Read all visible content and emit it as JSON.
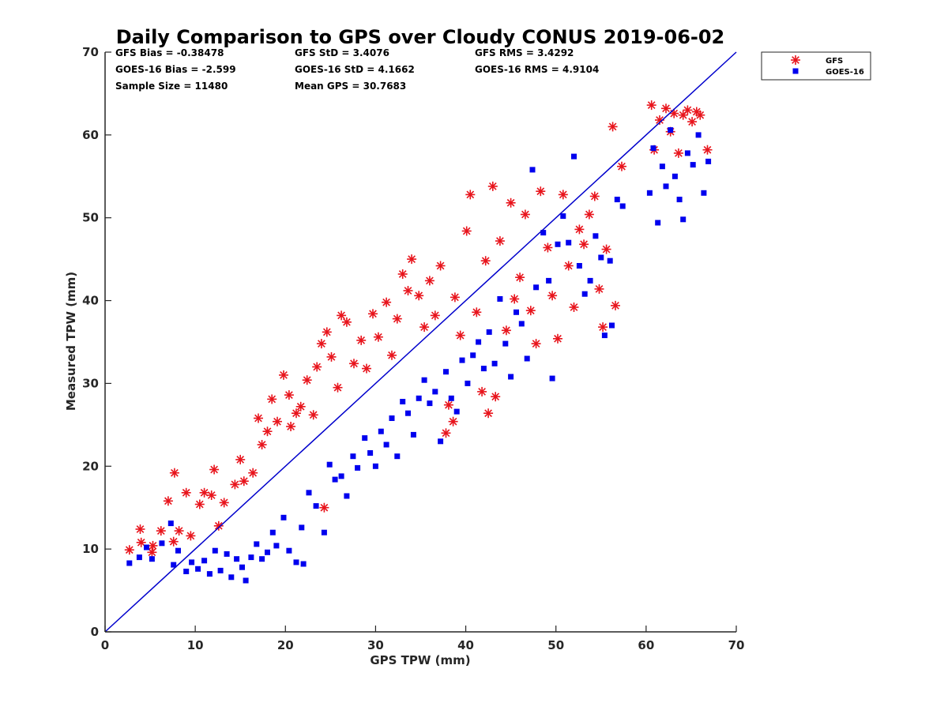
{
  "chart_data": {
    "type": "scatter",
    "title": "Daily Comparison to GPS over Cloudy CONUS 2019-06-02",
    "xlabel": "GPS TPW (mm)",
    "ylabel": "Measured TPW (mm)",
    "xlim": [
      0,
      70
    ],
    "ylim": [
      0,
      70
    ],
    "x_ticks": [
      "0",
      "10",
      "20",
      "30",
      "40",
      "50",
      "60",
      "70"
    ],
    "y_ticks": [
      "0",
      "10",
      "20",
      "30",
      "40",
      "50",
      "60",
      "70"
    ],
    "grid": false,
    "legend_position": "outside-top-right",
    "stats": [
      "GFS Bias = -0.38478",
      "GFS StD = 3.4076",
      "GFS RMS = 3.4292",
      "GOES-16 Bias = -2.599",
      "GOES-16 StD = 4.1662",
      "GOES-16 RMS = 4.9104",
      "Sample Size = 11480",
      "Mean GPS = 30.7683"
    ],
    "reference_line": {
      "x": [
        0,
        70
      ],
      "y": [
        0,
        70
      ],
      "color": "#0000cc"
    },
    "series": [
      {
        "name": "GFS",
        "marker": "asterisk",
        "color": "#e8141c",
        "points": [
          [
            2.7,
            9.9
          ],
          [
            3.9,
            12.4
          ],
          [
            4.0,
            10.8
          ],
          [
            5.2,
            9.6
          ],
          [
            5.3,
            10.4
          ],
          [
            6.2,
            12.2
          ],
          [
            7.0,
            15.8
          ],
          [
            7.6,
            10.9
          ],
          [
            7.7,
            19.2
          ],
          [
            8.2,
            12.2
          ],
          [
            9.0,
            16.8
          ],
          [
            9.5,
            11.6
          ],
          [
            10.5,
            15.4
          ],
          [
            11.0,
            16.8
          ],
          [
            11.8,
            16.5
          ],
          [
            12.1,
            19.6
          ],
          [
            12.6,
            12.8
          ],
          [
            13.2,
            15.6
          ],
          [
            14.4,
            17.8
          ],
          [
            15.0,
            20.8
          ],
          [
            15.4,
            18.2
          ],
          [
            16.4,
            19.2
          ],
          [
            17.0,
            25.8
          ],
          [
            17.4,
            22.6
          ],
          [
            18.0,
            24.2
          ],
          [
            18.5,
            28.1
          ],
          [
            19.1,
            25.4
          ],
          [
            19.8,
            31.0
          ],
          [
            20.4,
            28.6
          ],
          [
            20.6,
            24.8
          ],
          [
            21.2,
            26.4
          ],
          [
            21.7,
            27.2
          ],
          [
            22.4,
            30.4
          ],
          [
            23.1,
            26.2
          ],
          [
            23.5,
            32.0
          ],
          [
            24.0,
            34.8
          ],
          [
            24.3,
            15.0
          ],
          [
            24.6,
            36.2
          ],
          [
            25.1,
            33.2
          ],
          [
            25.8,
            29.5
          ],
          [
            26.2,
            38.2
          ],
          [
            26.8,
            37.4
          ],
          [
            27.6,
            32.4
          ],
          [
            28.4,
            35.2
          ],
          [
            29.0,
            31.8
          ],
          [
            29.7,
            38.4
          ],
          [
            30.3,
            35.6
          ],
          [
            31.2,
            39.8
          ],
          [
            31.8,
            33.4
          ],
          [
            32.4,
            37.8
          ],
          [
            33.0,
            43.2
          ],
          [
            33.6,
            41.2
          ],
          [
            34.0,
            45.0
          ],
          [
            34.8,
            40.6
          ],
          [
            35.4,
            36.8
          ],
          [
            36.0,
            42.4
          ],
          [
            36.6,
            38.2
          ],
          [
            37.2,
            44.2
          ],
          [
            37.8,
            24.0
          ],
          [
            38.1,
            27.4
          ],
          [
            38.6,
            25.4
          ],
          [
            38.8,
            40.4
          ],
          [
            39.4,
            35.8
          ],
          [
            40.1,
            48.4
          ],
          [
            40.5,
            52.8
          ],
          [
            41.2,
            38.6
          ],
          [
            41.8,
            29.0
          ],
          [
            42.2,
            44.8
          ],
          [
            42.5,
            26.4
          ],
          [
            43.0,
            53.8
          ],
          [
            43.3,
            28.4
          ],
          [
            43.8,
            47.2
          ],
          [
            44.5,
            36.4
          ],
          [
            45.0,
            51.8
          ],
          [
            45.4,
            40.2
          ],
          [
            46.0,
            42.8
          ],
          [
            46.6,
            50.4
          ],
          [
            47.2,
            38.8
          ],
          [
            47.8,
            34.8
          ],
          [
            48.3,
            53.2
          ],
          [
            49.1,
            46.4
          ],
          [
            49.6,
            40.6
          ],
          [
            50.2,
            35.4
          ],
          [
            50.8,
            52.8
          ],
          [
            51.4,
            44.2
          ],
          [
            52.0,
            39.2
          ],
          [
            52.6,
            48.6
          ],
          [
            53.1,
            46.8
          ],
          [
            53.7,
            50.4
          ],
          [
            54.3,
            52.6
          ],
          [
            54.8,
            41.4
          ],
          [
            55.2,
            36.8
          ],
          [
            55.6,
            46.2
          ],
          [
            56.3,
            61.0
          ],
          [
            56.6,
            39.4
          ],
          [
            57.3,
            56.2
          ],
          [
            60.6,
            63.6
          ],
          [
            60.9,
            58.2
          ],
          [
            61.5,
            61.8
          ],
          [
            62.2,
            63.2
          ],
          [
            62.7,
            60.4
          ],
          [
            63.1,
            62.6
          ],
          [
            63.6,
            57.8
          ],
          [
            64.1,
            62.4
          ],
          [
            64.6,
            63.0
          ],
          [
            65.1,
            61.6
          ],
          [
            65.6,
            62.8
          ],
          [
            66.0,
            62.4
          ],
          [
            66.8,
            58.2
          ]
        ]
      },
      {
        "name": "GOES-16",
        "marker": "square",
        "color": "#0000ee",
        "points": [
          [
            2.7,
            8.3
          ],
          [
            3.8,
            9.0
          ],
          [
            4.6,
            10.2
          ],
          [
            5.2,
            8.8
          ],
          [
            6.3,
            10.7
          ],
          [
            7.3,
            13.1
          ],
          [
            7.6,
            8.1
          ],
          [
            8.1,
            9.8
          ],
          [
            9.0,
            7.3
          ],
          [
            9.6,
            8.4
          ],
          [
            10.3,
            7.6
          ],
          [
            11.0,
            8.6
          ],
          [
            11.6,
            7.0
          ],
          [
            12.2,
            9.8
          ],
          [
            12.8,
            7.4
          ],
          [
            13.5,
            9.4
          ],
          [
            14.0,
            6.6
          ],
          [
            14.6,
            8.8
          ],
          [
            15.2,
            7.8
          ],
          [
            15.6,
            6.2
          ],
          [
            16.2,
            9.0
          ],
          [
            16.8,
            10.6
          ],
          [
            17.4,
            8.8
          ],
          [
            18.0,
            9.6
          ],
          [
            18.6,
            12.0
          ],
          [
            19.0,
            10.4
          ],
          [
            19.8,
            13.8
          ],
          [
            20.4,
            9.8
          ],
          [
            21.2,
            8.4
          ],
          [
            21.8,
            12.6
          ],
          [
            22.0,
            8.2
          ],
          [
            22.6,
            16.8
          ],
          [
            23.4,
            15.2
          ],
          [
            24.3,
            12.0
          ],
          [
            24.9,
            20.2
          ],
          [
            25.5,
            18.4
          ],
          [
            26.2,
            18.8
          ],
          [
            26.8,
            16.4
          ],
          [
            27.5,
            21.2
          ],
          [
            28.0,
            19.8
          ],
          [
            28.8,
            23.4
          ],
          [
            29.4,
            21.6
          ],
          [
            30.0,
            20.0
          ],
          [
            30.6,
            24.2
          ],
          [
            31.2,
            22.6
          ],
          [
            31.8,
            25.8
          ],
          [
            32.4,
            21.2
          ],
          [
            33.0,
            27.8
          ],
          [
            33.6,
            26.4
          ],
          [
            34.2,
            23.8
          ],
          [
            34.8,
            28.2
          ],
          [
            35.4,
            30.4
          ],
          [
            36.0,
            27.6
          ],
          [
            36.6,
            29.0
          ],
          [
            37.2,
            23.0
          ],
          [
            37.8,
            31.4
          ],
          [
            38.4,
            28.2
          ],
          [
            39.0,
            26.6
          ],
          [
            39.6,
            32.8
          ],
          [
            40.2,
            30.0
          ],
          [
            40.8,
            33.4
          ],
          [
            41.4,
            35.0
          ],
          [
            42.0,
            31.8
          ],
          [
            42.6,
            36.2
          ],
          [
            43.2,
            32.4
          ],
          [
            43.8,
            40.2
          ],
          [
            44.4,
            34.8
          ],
          [
            45.0,
            30.8
          ],
          [
            45.6,
            38.6
          ],
          [
            46.2,
            37.2
          ],
          [
            46.8,
            33.0
          ],
          [
            47.4,
            55.8
          ],
          [
            47.8,
            41.6
          ],
          [
            48.6,
            48.2
          ],
          [
            49.2,
            42.4
          ],
          [
            49.6,
            30.6
          ],
          [
            50.2,
            46.8
          ],
          [
            50.8,
            50.2
          ],
          [
            51.4,
            47.0
          ],
          [
            52.0,
            57.4
          ],
          [
            52.6,
            44.2
          ],
          [
            53.2,
            40.8
          ],
          [
            53.8,
            42.4
          ],
          [
            54.4,
            47.8
          ],
          [
            55.0,
            45.2
          ],
          [
            55.4,
            35.8
          ],
          [
            56.0,
            44.8
          ],
          [
            56.2,
            37.0
          ],
          [
            56.8,
            52.2
          ],
          [
            57.4,
            51.4
          ],
          [
            60.4,
            53.0
          ],
          [
            60.8,
            58.4
          ],
          [
            61.3,
            49.4
          ],
          [
            61.8,
            56.2
          ],
          [
            62.2,
            53.8
          ],
          [
            62.7,
            60.6
          ],
          [
            63.2,
            55.0
          ],
          [
            63.7,
            52.2
          ],
          [
            64.1,
            49.8
          ],
          [
            64.6,
            57.8
          ],
          [
            65.2,
            56.4
          ],
          [
            65.8,
            60.0
          ],
          [
            66.4,
            53.0
          ],
          [
            66.9,
            56.8
          ]
        ]
      }
    ]
  }
}
